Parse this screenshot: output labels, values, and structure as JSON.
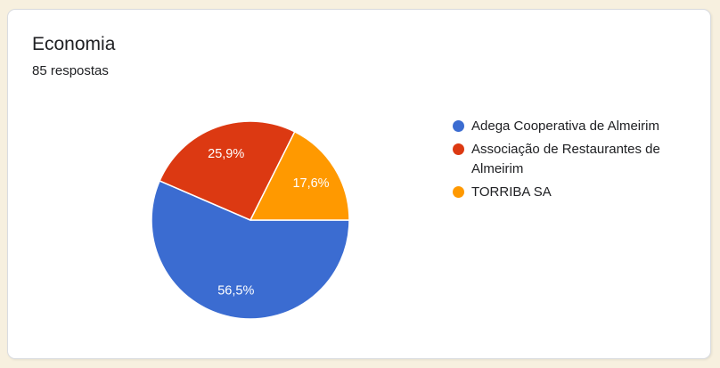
{
  "page": {
    "background_color": "#F7F0DF"
  },
  "card": {
    "background_color": "#FFFFFF",
    "border_color": "#DADCE0"
  },
  "chart_data": {
    "type": "pie",
    "title": "Economia",
    "subtitle": "85 respostas",
    "responses_count": 85,
    "legend_position": "right",
    "start_angle_deg": 0,
    "direction": "clockwise",
    "slices": [
      {
        "label": "Adega Cooperativa de Almeirim",
        "percent": 56.5,
        "percent_label": "56,5%",
        "color": "#3B6CD1"
      },
      {
        "label": "Associação de Restaurantes de Almeirim",
        "percent": 25.9,
        "percent_label": "25,9%",
        "color": "#DC3912"
      },
      {
        "label": "TORRIBA SA",
        "percent": 17.6,
        "percent_label": "17,6%",
        "color": "#FF9900"
      }
    ]
  }
}
